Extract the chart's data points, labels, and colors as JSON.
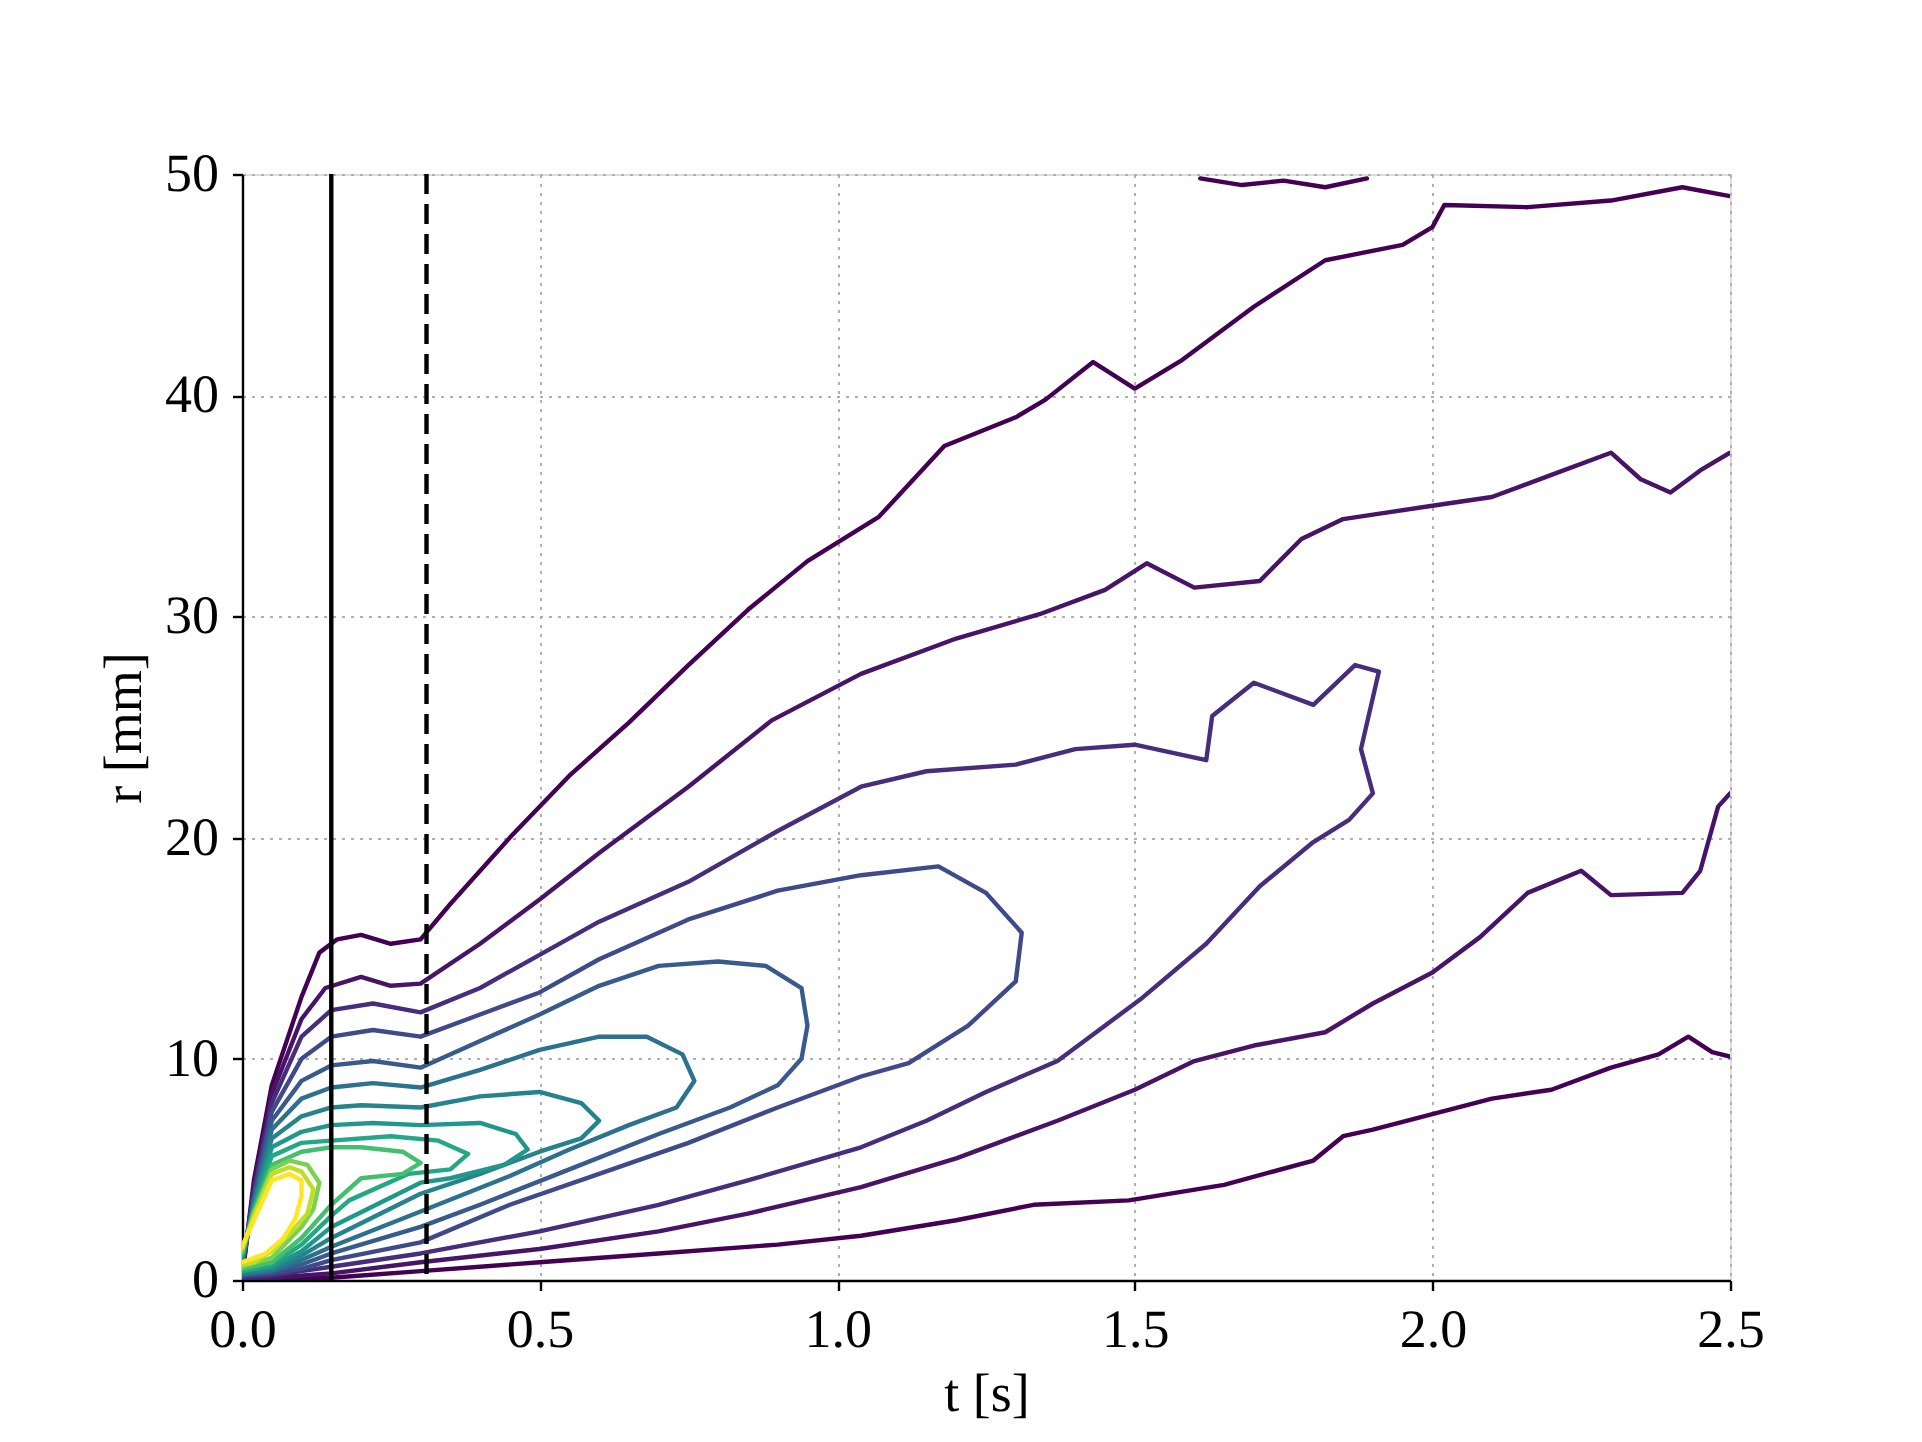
{
  "chart_data": {
    "type": "line",
    "xlabel": "t [s]",
    "ylabel": "r [mm]",
    "xlim": [
      0,
      2.5
    ],
    "ylim": [
      0,
      50
    ],
    "xticks": [
      {
        "value": 0,
        "label": "0.0"
      },
      0.5,
      {
        "value": 1,
        "label": "1.0"
      },
      1.5,
      {
        "value": 2,
        "label": "2.0"
      },
      2.5
    ],
    "yticks": [
      0,
      10,
      20,
      30,
      40,
      50
    ],
    "grid": true,
    "ref_lines": [
      {
        "axis": "x",
        "value": 0.15,
        "color": "#000000",
        "line_style": "solid"
      },
      {
        "axis": "x",
        "value": 0.31,
        "color": "#000000",
        "line_style": "dashed"
      }
    ],
    "series": [
      {
        "color": "#440154",
        "x": [
          1.61,
          1.68,
          1.75,
          1.82,
          1.89
        ],
        "values": [
          49.8,
          49.5,
          49.7,
          49.4,
          49.8
        ]
      },
      {
        "color": "#440154",
        "x": [
          2.5,
          2.47,
          2.43,
          2.38,
          2.3,
          2.2,
          2.1,
          2.0,
          1.9,
          1.85,
          1.8,
          1.65,
          1.49,
          1.33,
          1.2,
          1.04,
          0.9,
          0.7,
          0.5,
          0.3,
          0.15,
          0.05,
          0.0,
          0.02,
          0.05,
          0.1,
          0.13,
          0.16,
          0.2,
          0.25,
          0.3,
          0.35,
          0.45,
          0.55,
          0.65,
          0.75,
          0.85,
          0.95,
          1.07,
          1.18,
          1.3,
          1.35,
          1.43,
          1.5,
          1.58,
          1.7,
          1.82,
          1.95,
          2.0,
          2.02,
          2.16,
          2.3,
          2.42,
          2.5
        ],
        "values": [
          10.1,
          10.3,
          11.0,
          10.2,
          9.6,
          8.6,
          8.2,
          7.5,
          6.8,
          6.5,
          5.4,
          4.3,
          3.6,
          3.4,
          2.7,
          2.0,
          1.6,
          1.2,
          0.8,
          0.4,
          0.1,
          0.1,
          0.1,
          4.5,
          8.8,
          12.8,
          14.8,
          15.4,
          15.6,
          15.2,
          15.4,
          17.0,
          20.0,
          22.8,
          25.2,
          27.8,
          30.3,
          32.5,
          34.5,
          37.7,
          39.0,
          39.8,
          41.5,
          40.3,
          41.6,
          44.0,
          46.1,
          46.8,
          47.6,
          48.6,
          48.5,
          48.8,
          49.4,
          49.0
        ]
      },
      {
        "color": "#481467",
        "x": [
          2.5,
          2.48,
          2.45,
          2.42,
          2.3,
          2.25,
          2.16,
          2.08,
          2.0,
          1.9,
          1.82,
          1.7,
          1.6,
          1.5,
          1.37,
          1.2,
          1.04,
          0.85,
          0.7,
          0.5,
          0.3,
          0.15,
          0.05,
          0.0,
          0.02,
          0.05,
          0.1,
          0.14,
          0.2,
          0.25,
          0.3,
          0.4,
          0.5,
          0.6,
          0.75,
          0.89,
          1.04,
          1.2,
          1.34,
          1.45,
          1.52,
          1.6,
          1.71,
          1.78,
          1.85,
          1.9,
          2.0,
          2.1,
          2.2,
          2.3,
          2.35,
          2.4,
          2.45,
          2.5
        ],
        "values": [
          22.0,
          21.4,
          18.5,
          17.5,
          17.4,
          18.5,
          17.5,
          15.5,
          13.9,
          12.5,
          11.2,
          10.6,
          9.9,
          8.6,
          7.2,
          5.5,
          4.2,
          3.0,
          2.2,
          1.4,
          0.8,
          0.3,
          0.1,
          0.1,
          4.2,
          8.4,
          11.8,
          13.2,
          13.7,
          13.3,
          13.4,
          15.2,
          17.2,
          19.3,
          22.3,
          25.3,
          27.4,
          29.0,
          30.1,
          31.2,
          32.4,
          31.3,
          31.6,
          33.5,
          34.4,
          34.6,
          35.0,
          35.4,
          36.4,
          37.4,
          36.2,
          35.6,
          36.6,
          37.4
        ]
      },
      {
        "color": "#472d7b",
        "x": [
          0.0,
          0.02,
          0.05,
          0.1,
          0.15,
          0.22,
          0.3,
          0.4,
          0.5,
          0.6,
          0.75,
          0.9,
          1.04,
          1.15,
          1.3,
          1.4,
          1.5,
          1.62,
          1.63,
          1.7,
          1.8,
          1.87,
          1.91,
          1.88,
          1.9,
          1.86,
          1.8,
          1.71,
          1.62,
          1.51,
          1.37,
          1.25,
          1.15,
          1.04,
          0.85,
          0.7,
          0.5,
          0.3,
          0.15,
          0.1,
          0.05,
          0.0
        ],
        "values": [
          0.5,
          4.0,
          8.0,
          11.0,
          12.2,
          12.5,
          12.1,
          13.2,
          14.7,
          16.2,
          18.0,
          20.3,
          22.3,
          23.0,
          23.3,
          24.0,
          24.2,
          23.5,
          25.5,
          27.0,
          26.0,
          27.8,
          27.5,
          24.0,
          22.0,
          20.8,
          19.8,
          17.8,
          15.2,
          12.7,
          9.9,
          8.5,
          7.2,
          6.0,
          4.5,
          3.4,
          2.2,
          1.2,
          0.6,
          0.4,
          0.2,
          0.1
        ]
      },
      {
        "color": "#3e4a89",
        "x": [
          0.0,
          0.02,
          0.05,
          0.1,
          0.15,
          0.22,
          0.3,
          0.4,
          0.5,
          0.6,
          0.75,
          0.9,
          1.04,
          1.17,
          1.25,
          1.31,
          1.3,
          1.22,
          1.12,
          1.04,
          0.9,
          0.75,
          0.6,
          0.45,
          0.3,
          0.15,
          0.1,
          0.05,
          0.0
        ],
        "values": [
          0.6,
          3.8,
          7.6,
          10.0,
          11.0,
          11.3,
          11.0,
          12.0,
          13.0,
          14.5,
          16.3,
          17.6,
          18.3,
          18.7,
          17.5,
          15.7,
          13.5,
          11.5,
          9.8,
          9.2,
          7.8,
          6.2,
          4.8,
          3.4,
          1.7,
          0.9,
          0.5,
          0.3,
          0.2
        ]
      },
      {
        "color": "#375b8d",
        "x": [
          0.0,
          0.02,
          0.05,
          0.1,
          0.15,
          0.22,
          0.3,
          0.4,
          0.5,
          0.6,
          0.7,
          0.8,
          0.88,
          0.94,
          0.95,
          0.94,
          0.9,
          0.82,
          0.7,
          0.55,
          0.4,
          0.3,
          0.15,
          0.1,
          0.05,
          0.0
        ],
        "values": [
          0.7,
          3.6,
          7.2,
          9.0,
          9.7,
          9.9,
          9.6,
          10.8,
          12.0,
          13.3,
          14.2,
          14.4,
          14.2,
          13.2,
          11.5,
          10.0,
          8.8,
          7.8,
          6.6,
          5.0,
          3.4,
          2.4,
          1.2,
          0.7,
          0.4,
          0.2
        ]
      },
      {
        "color": "#2c718e",
        "x": [
          0.0,
          0.02,
          0.05,
          0.1,
          0.15,
          0.22,
          0.3,
          0.4,
          0.5,
          0.6,
          0.68,
          0.74,
          0.76,
          0.73,
          0.65,
          0.55,
          0.45,
          0.3,
          0.15,
          0.1,
          0.05,
          0.0
        ],
        "values": [
          0.8,
          3.5,
          6.8,
          8.2,
          8.7,
          8.9,
          8.7,
          9.5,
          10.4,
          11.0,
          11.0,
          10.2,
          9.0,
          7.8,
          7.0,
          5.9,
          4.7,
          3.1,
          1.5,
          0.9,
          0.4,
          0.3
        ]
      },
      {
        "color": "#25838e",
        "x": [
          0.0,
          0.02,
          0.05,
          0.1,
          0.15,
          0.2,
          0.3,
          0.4,
          0.5,
          0.57,
          0.6,
          0.57,
          0.5,
          0.4,
          0.3,
          0.15,
          0.1,
          0.05,
          0.0
        ],
        "values": [
          0.9,
          3.4,
          6.4,
          7.4,
          7.8,
          7.9,
          7.8,
          8.3,
          8.5,
          8.0,
          7.2,
          6.4,
          5.8,
          4.8,
          3.9,
          1.9,
          1.1,
          0.5,
          0.3
        ]
      },
      {
        "color": "#1f988b",
        "x": [
          0.0,
          0.02,
          0.05,
          0.1,
          0.15,
          0.22,
          0.3,
          0.4,
          0.46,
          0.48,
          0.44,
          0.35,
          0.3,
          0.15,
          0.1,
          0.05,
          0.0
        ],
        "values": [
          1.0,
          3.3,
          6.0,
          6.7,
          7.0,
          7.1,
          7.0,
          7.1,
          6.6,
          5.9,
          5.2,
          4.6,
          4.4,
          2.4,
          1.3,
          0.6,
          0.4
        ]
      },
      {
        "color": "#22a884",
        "x": [
          0.0,
          0.02,
          0.05,
          0.1,
          0.15,
          0.25,
          0.33,
          0.38,
          0.35,
          0.28,
          0.18,
          0.15,
          0.1,
          0.05,
          0.0
        ],
        "values": [
          1.1,
          3.2,
          5.6,
          6.2,
          6.3,
          6.5,
          6.3,
          5.7,
          5.0,
          4.8,
          3.6,
          2.9,
          1.6,
          0.7,
          0.4
        ]
      },
      {
        "color": "#44bf70",
        "x": [
          0.0,
          0.02,
          0.05,
          0.1,
          0.15,
          0.2,
          0.27,
          0.3,
          0.27,
          0.2,
          0.15,
          0.1,
          0.05,
          0.0
        ],
        "values": [
          1.2,
          3.1,
          5.2,
          5.8,
          6.0,
          6.0,
          5.8,
          5.3,
          4.8,
          4.6,
          3.4,
          1.9,
          0.8,
          0.5
        ]
      },
      {
        "color": "#7ad151",
        "x": [
          0.0,
          0.02,
          0.05,
          0.08,
          0.11,
          0.13,
          0.12,
          0.1,
          0.05,
          0.0
        ],
        "values": [
          1.3,
          3.0,
          5.0,
          5.4,
          5.2,
          4.4,
          3.2,
          2.4,
          1.0,
          0.6
        ]
      },
      {
        "color": "#bddf26",
        "x": [
          0.0,
          0.02,
          0.05,
          0.08,
          0.1,
          0.12,
          0.11,
          0.08,
          0.05,
          0.02,
          0.0
        ],
        "values": [
          1.4,
          2.9,
          4.8,
          5.1,
          4.9,
          4.1,
          3.0,
          2.1,
          1.3,
          0.8,
          0.7
        ]
      },
      {
        "color": "#fde725",
        "x": [
          0.0,
          0.02,
          0.05,
          0.08,
          0.1,
          0.1,
          0.09,
          0.07,
          0.04,
          0.01,
          0.0
        ],
        "values": [
          1.5,
          2.7,
          4.5,
          4.8,
          4.5,
          3.8,
          2.8,
          1.9,
          1.2,
          0.9,
          0.8
        ]
      }
    ]
  }
}
